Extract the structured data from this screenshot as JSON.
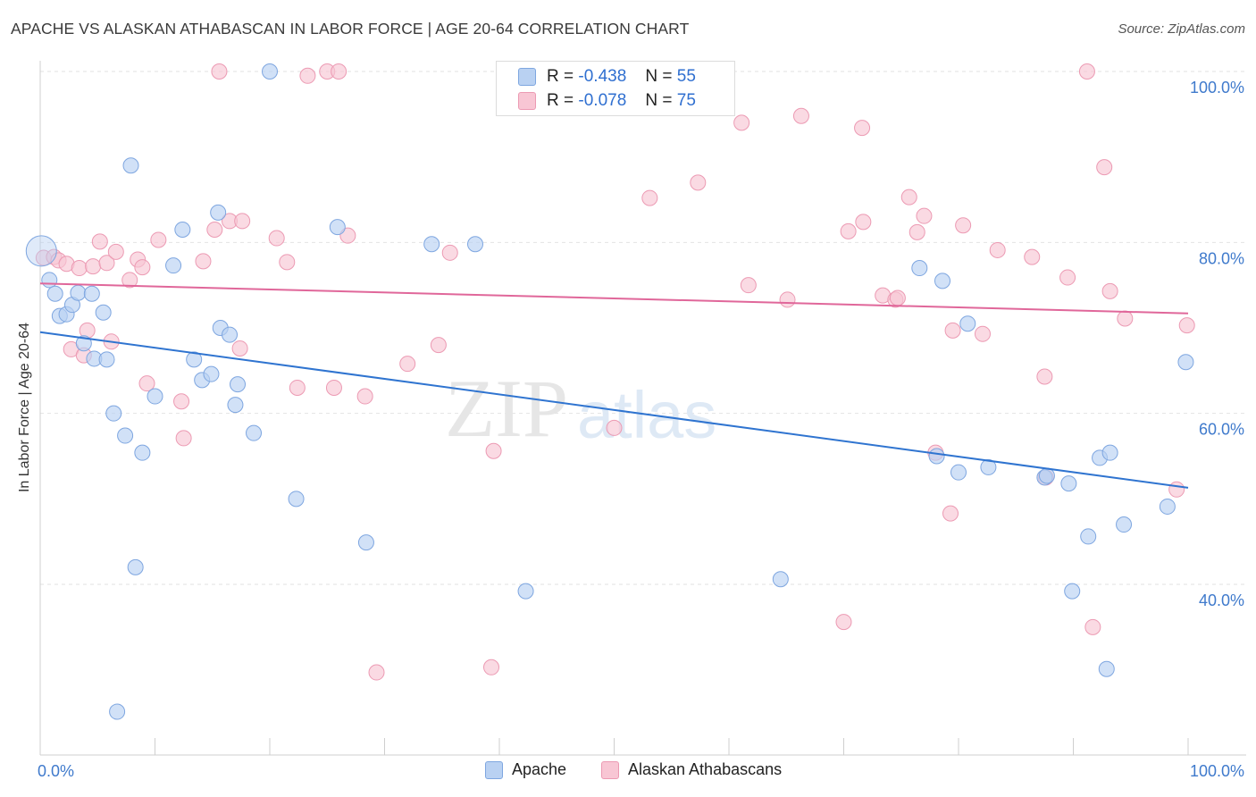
{
  "title": "APACHE VS ALASKAN ATHABASCAN IN LABOR FORCE | AGE 20-64 CORRELATION CHART",
  "source": "Source: ZipAtlas.com",
  "watermark": {
    "zip": "ZIP",
    "atlas": "atlas"
  },
  "legend_stats": [
    {
      "r_label": "R =",
      "r_value": "-0.438",
      "n_label": "N =",
      "n_value": "55"
    },
    {
      "r_label": "R =",
      "r_value": "-0.078",
      "n_label": "N =",
      "n_value": "75"
    }
  ],
  "bottom_legend": [
    "Apache",
    "Alaskan Athabascans"
  ],
  "colors": {
    "apache_fill": "#b9d1f2",
    "apache_stroke": "#7ea6e0",
    "apache_line": "#2f74d0",
    "athabascan_fill": "#f8c6d4",
    "athabascan_stroke": "#ec9ab3",
    "athabascan_line": "#e0679a",
    "tick_label": "#3f7acc",
    "grid": "#e2e2e2"
  },
  "chart_data": {
    "type": "scatter",
    "title": "APACHE VS ALASKAN ATHABASCAN IN LABOR FORCE | AGE 20-64 CORRELATION CHART",
    "xlabel": "",
    "ylabel": "In Labor Force | Age 20-64",
    "xlim": [
      0,
      100
    ],
    "ylim": [
      22,
      102
    ],
    "x_tick_labels": [
      "0.0%",
      "100.0%"
    ],
    "y_ticks": [
      40,
      60,
      80,
      100
    ],
    "y_tick_labels": [
      "40.0%",
      "60.0%",
      "80.0%",
      "100.0%"
    ],
    "grid": true,
    "legend_position": "top-center",
    "series": [
      {
        "name": "Apache",
        "r": -0.438,
        "n": 55,
        "trend": {
          "x": [
            0,
            100
          ],
          "y": [
            69.5,
            51.3
          ]
        },
        "points": [
          [
            0.1,
            79.0
          ],
          [
            0.8,
            75.6
          ],
          [
            1.3,
            74.0
          ],
          [
            1.7,
            71.4
          ],
          [
            2.3,
            71.6
          ],
          [
            2.8,
            72.7
          ],
          [
            3.3,
            74.1
          ],
          [
            3.8,
            68.2
          ],
          [
            4.5,
            74.0
          ],
          [
            4.7,
            66.4
          ],
          [
            5.5,
            71.8
          ],
          [
            5.8,
            66.3
          ],
          [
            6.4,
            60.0
          ],
          [
            7.4,
            57.4
          ],
          [
            7.9,
            89.0
          ],
          [
            8.3,
            42.0
          ],
          [
            8.9,
            55.4
          ],
          [
            6.7,
            25.1
          ],
          [
            10.0,
            62.0
          ],
          [
            11.6,
            77.3
          ],
          [
            12.4,
            81.5
          ],
          [
            13.4,
            66.3
          ],
          [
            14.1,
            63.9
          ],
          [
            14.9,
            64.6
          ],
          [
            15.5,
            83.5
          ],
          [
            15.7,
            70.0
          ],
          [
            16.5,
            69.2
          ],
          [
            17.0,
            61.0
          ],
          [
            17.2,
            63.4
          ],
          [
            18.6,
            57.7
          ],
          [
            20.0,
            100.0
          ],
          [
            22.3,
            50.0
          ],
          [
            25.9,
            81.8
          ],
          [
            28.4,
            44.9
          ],
          [
            34.1,
            79.8
          ],
          [
            37.9,
            79.8
          ],
          [
            42.3,
            39.2
          ],
          [
            64.5,
            40.6
          ],
          [
            76.6,
            77.0
          ],
          [
            78.1,
            55.0
          ],
          [
            78.6,
            75.5
          ],
          [
            80.0,
            53.1
          ],
          [
            80.8,
            70.5
          ],
          [
            82.6,
            53.7
          ],
          [
            87.5,
            52.5
          ],
          [
            87.7,
            52.7
          ],
          [
            89.6,
            51.8
          ],
          [
            91.3,
            45.6
          ],
          [
            89.9,
            39.2
          ],
          [
            92.3,
            54.8
          ],
          [
            93.2,
            55.4
          ],
          [
            92.9,
            30.1
          ],
          [
            94.4,
            47.0
          ],
          [
            98.2,
            49.1
          ],
          [
            99.8,
            66.0
          ]
        ]
      },
      {
        "name": "Alaskan Athabascans",
        "r": -0.078,
        "n": 75,
        "trend": {
          "x": [
            0,
            100
          ],
          "y": [
            75.2,
            71.7
          ]
        },
        "points": [
          [
            0.3,
            78.2
          ],
          [
            1.2,
            78.3
          ],
          [
            1.6,
            77.9
          ],
          [
            2.3,
            77.5
          ],
          [
            2.7,
            67.5
          ],
          [
            3.4,
            77.0
          ],
          [
            3.8,
            66.8
          ],
          [
            4.1,
            69.7
          ],
          [
            4.6,
            77.2
          ],
          [
            5.2,
            80.1
          ],
          [
            5.8,
            77.6
          ],
          [
            6.2,
            68.4
          ],
          [
            6.6,
            78.9
          ],
          [
            7.8,
            75.6
          ],
          [
            8.5,
            78.0
          ],
          [
            8.9,
            77.1
          ],
          [
            9.3,
            63.5
          ],
          [
            10.3,
            80.3
          ],
          [
            12.3,
            61.4
          ],
          [
            12.5,
            57.1
          ],
          [
            14.2,
            77.8
          ],
          [
            15.2,
            81.5
          ],
          [
            15.6,
            100.0
          ],
          [
            16.5,
            82.5
          ],
          [
            17.4,
            67.6
          ],
          [
            17.6,
            82.5
          ],
          [
            20.6,
            80.5
          ],
          [
            21.5,
            77.7
          ],
          [
            22.4,
            63.0
          ],
          [
            23.3,
            99.5
          ],
          [
            25.0,
            100.0
          ],
          [
            25.6,
            63.0
          ],
          [
            26.0,
            100.0
          ],
          [
            26.8,
            80.8
          ],
          [
            28.3,
            62.0
          ],
          [
            29.3,
            29.7
          ],
          [
            32.0,
            65.8
          ],
          [
            34.7,
            68.0
          ],
          [
            35.7,
            78.8
          ],
          [
            39.3,
            30.3
          ],
          [
            39.5,
            55.6
          ],
          [
            50.0,
            58.3
          ],
          [
            53.1,
            85.2
          ],
          [
            57.3,
            87.0
          ],
          [
            61.1,
            94.0
          ],
          [
            61.7,
            75.0
          ],
          [
            65.1,
            73.3
          ],
          [
            66.3,
            94.8
          ],
          [
            70.0,
            35.6
          ],
          [
            70.4,
            81.3
          ],
          [
            71.6,
            93.4
          ],
          [
            71.7,
            82.4
          ],
          [
            73.4,
            73.8
          ],
          [
            74.5,
            73.3
          ],
          [
            74.7,
            73.5
          ],
          [
            75.7,
            85.3
          ],
          [
            76.4,
            81.2
          ],
          [
            77.0,
            83.1
          ],
          [
            78.0,
            55.4
          ],
          [
            79.3,
            48.3
          ],
          [
            79.5,
            69.7
          ],
          [
            80.4,
            82.0
          ],
          [
            82.1,
            69.3
          ],
          [
            83.4,
            79.1
          ],
          [
            86.4,
            78.3
          ],
          [
            87.5,
            64.3
          ],
          [
            89.5,
            75.9
          ],
          [
            91.2,
            100.0
          ],
          [
            91.7,
            35.0
          ],
          [
            92.7,
            88.8
          ],
          [
            93.2,
            74.3
          ],
          [
            94.5,
            71.1
          ],
          [
            99.9,
            70.3
          ],
          [
            99.0,
            51.1
          ],
          [
            87.6,
            52.5
          ]
        ]
      }
    ]
  }
}
